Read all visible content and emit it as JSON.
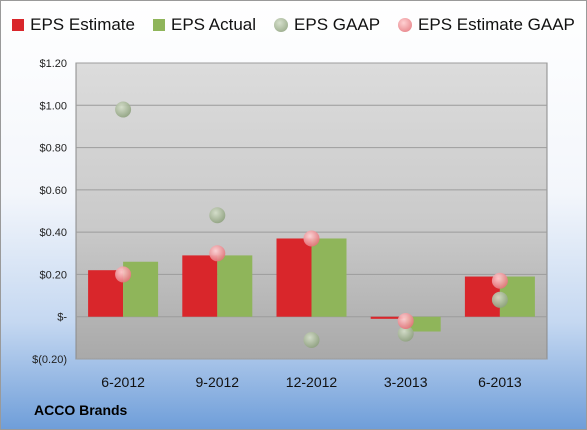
{
  "chart_data": {
    "type": "bar",
    "categories": [
      "6-2012",
      "9-2012",
      "12-2012",
      "3-2013",
      "6-2013"
    ],
    "series": [
      {
        "name": "EPS Estimate",
        "kind": "bar",
        "color": "#d9262b",
        "values": [
          0.22,
          0.29,
          0.37,
          -0.01,
          0.19
        ]
      },
      {
        "name": "EPS Actual",
        "kind": "bar",
        "color": "#8fb55a",
        "values": [
          0.26,
          0.29,
          0.37,
          -0.07,
          0.19
        ]
      },
      {
        "name": "EPS GAAP",
        "kind": "point",
        "color": "#a3b596",
        "values": [
          0.98,
          0.48,
          -0.11,
          -0.08,
          0.08
        ]
      },
      {
        "name": "EPS Estimate GAAP",
        "kind": "point",
        "color": "#ee8f93",
        "values": [
          0.2,
          0.3,
          0.37,
          -0.02,
          0.17
        ]
      }
    ],
    "yticks": [
      {
        "value": 1.2,
        "label": "$1.20"
      },
      {
        "value": 1.0,
        "label": "$1.00"
      },
      {
        "value": 0.8,
        "label": "$0.80"
      },
      {
        "value": 0.6,
        "label": "$0.60"
      },
      {
        "value": 0.4,
        "label": "$0.40"
      },
      {
        "value": 0.2,
        "label": "$0.20"
      },
      {
        "value": 0.0,
        "label": "$-"
      },
      {
        "value": -0.2,
        "label": "$(0.20)"
      }
    ],
    "ylim": [
      -0.2,
      1.2
    ],
    "grid": true,
    "legend_position": "top",
    "title": "",
    "xlabel": "",
    "ylabel": ""
  },
  "brand": "ACCO Brands"
}
